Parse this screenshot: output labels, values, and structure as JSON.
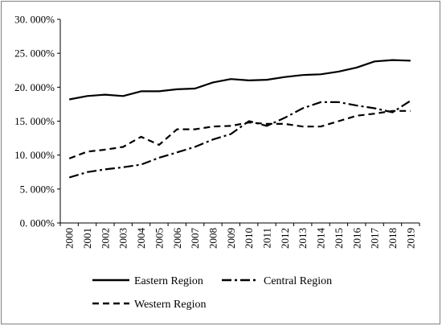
{
  "chart_data": {
    "type": "line",
    "title": "",
    "xlabel": "",
    "ylabel": "",
    "x": [
      "2000",
      "2001",
      "2002",
      "2003",
      "2004",
      "2005",
      "2006",
      "2007",
      "2008",
      "2009",
      "2010",
      "2011",
      "2012",
      "2013",
      "2014",
      "2015",
      "2016",
      "2017",
      "2018",
      "2019"
    ],
    "ylim": [
      0,
      30
    ],
    "yticks": [
      0,
      5,
      10,
      15,
      20,
      25,
      30
    ],
    "ytick_labels": [
      "0. 000%",
      "5. 000%",
      "10. 000%",
      "15. 000%",
      "20. 000%",
      "25. 000%",
      "30. 000%"
    ],
    "grid": false,
    "legend_position": "bottom",
    "series": [
      {
        "name": "Eastern Region",
        "style": "solid",
        "color": "#000000",
        "values": [
          18.2,
          18.7,
          18.9,
          18.7,
          19.4,
          19.4,
          19.7,
          19.8,
          20.7,
          21.2,
          21.0,
          21.1,
          21.5,
          21.8,
          21.9,
          22.3,
          22.9,
          23.8,
          24.0,
          23.9
        ]
      },
      {
        "name": "Central Region",
        "style": "dashdot",
        "color": "#000000",
        "values": [
          6.7,
          7.5,
          7.9,
          8.2,
          8.6,
          9.6,
          10.4,
          11.2,
          12.3,
          13.1,
          15.0,
          14.3,
          15.5,
          16.9,
          17.8,
          17.8,
          17.3,
          16.9,
          16.3,
          18.0
        ]
      },
      {
        "name": "Western Region",
        "style": "dashed",
        "color": "#000000",
        "values": [
          9.5,
          10.5,
          10.8,
          11.2,
          12.7,
          11.5,
          13.8,
          13.8,
          14.2,
          14.3,
          14.8,
          14.6,
          14.6,
          14.2,
          14.2,
          15.0,
          15.8,
          16.1,
          16.5,
          16.5
        ]
      }
    ]
  }
}
